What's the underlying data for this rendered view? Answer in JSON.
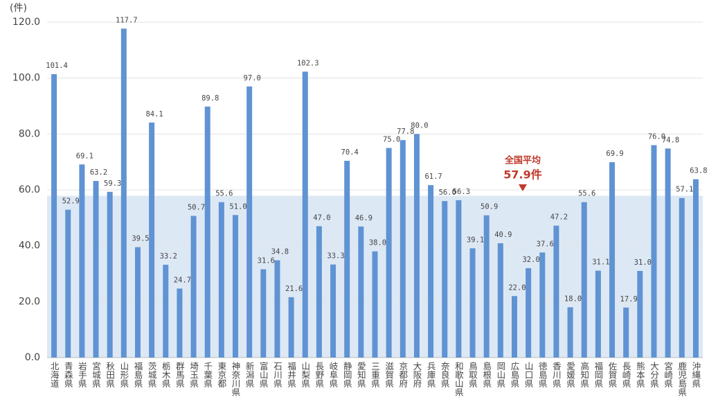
{
  "chart_data": {
    "type": "bar",
    "y_unit": "(件)",
    "categories": [
      "北海道",
      "青森県",
      "岩手県",
      "宮城県",
      "秋田県",
      "山形県",
      "福島県",
      "茨城県",
      "栃木県",
      "群馬県",
      "埼玉県",
      "千葉県",
      "東京都",
      "神奈川県",
      "新潟県",
      "富山県",
      "石川県",
      "福井県",
      "山梨県",
      "長野県",
      "岐阜県",
      "静岡県",
      "愛知県",
      "三重県",
      "滋賀県",
      "京都府",
      "大阪府",
      "兵庫県",
      "奈良県",
      "和歌山県",
      "鳥取県",
      "島根県",
      "岡山県",
      "広島県",
      "山口県",
      "徳島県",
      "香川県",
      "愛媛県",
      "高知県",
      "福岡県",
      "佐賀県",
      "長崎県",
      "熊本県",
      "大分県",
      "宮崎県",
      "鹿児島県",
      "沖縄県"
    ],
    "values": [
      101.4,
      52.9,
      69.1,
      63.2,
      59.3,
      117.7,
      39.5,
      84.1,
      33.2,
      24.7,
      50.7,
      89.8,
      55.6,
      51.0,
      97.0,
      31.6,
      34.8,
      21.6,
      102.3,
      47.0,
      33.3,
      70.4,
      46.9,
      38.0,
      75.0,
      77.8,
      80.0,
      61.7,
      56.0,
      56.3,
      39.1,
      50.9,
      40.9,
      22.0,
      32.0,
      37.6,
      47.2,
      18.0,
      55.6,
      31.1,
      69.9,
      17.9,
      31.0,
      76.0,
      74.8,
      57.1,
      63.8
    ],
    "value_labels": [
      "101.4",
      "52.9",
      "69.1",
      "63.2",
      "59.3",
      "117.7",
      "39.5",
      "84.1",
      "33.2",
      "24.7",
      "50.7",
      "89.8",
      "55.6",
      "51.0",
      "97.0",
      "31.6",
      "34.8",
      "21.6",
      "102.3",
      "47.0",
      "33.3",
      "70.4",
      "46.9",
      "38.0",
      "75.0",
      "77.8",
      "80.0",
      "61.7",
      "56.0",
      "56.3",
      "39.1",
      "50.9",
      "40.9",
      "22.0",
      "32.0",
      "37.6",
      "47.2",
      "18.0",
      "55.6",
      "31.1",
      "69.9",
      "17.9",
      "31.0",
      "76.0",
      "74.8",
      "57.1",
      "63.8"
    ],
    "color": "#5f93d3",
    "ylim": [
      0,
      120
    ],
    "yticks": [
      {
        "value": 0,
        "label": "0.0"
      },
      {
        "value": 20,
        "label": "20.0"
      },
      {
        "value": 40,
        "label": "40.0"
      },
      {
        "value": 60,
        "label": "60.0"
      },
      {
        "value": 80,
        "label": "80.0"
      },
      {
        "value": 100,
        "label": "100.0"
      },
      {
        "value": 120,
        "label": "120.0"
      }
    ],
    "grid": true,
    "average": {
      "label": "全国平均",
      "value": 57.9,
      "value_label": "57.9件",
      "color": "#dde8f5"
    }
  }
}
